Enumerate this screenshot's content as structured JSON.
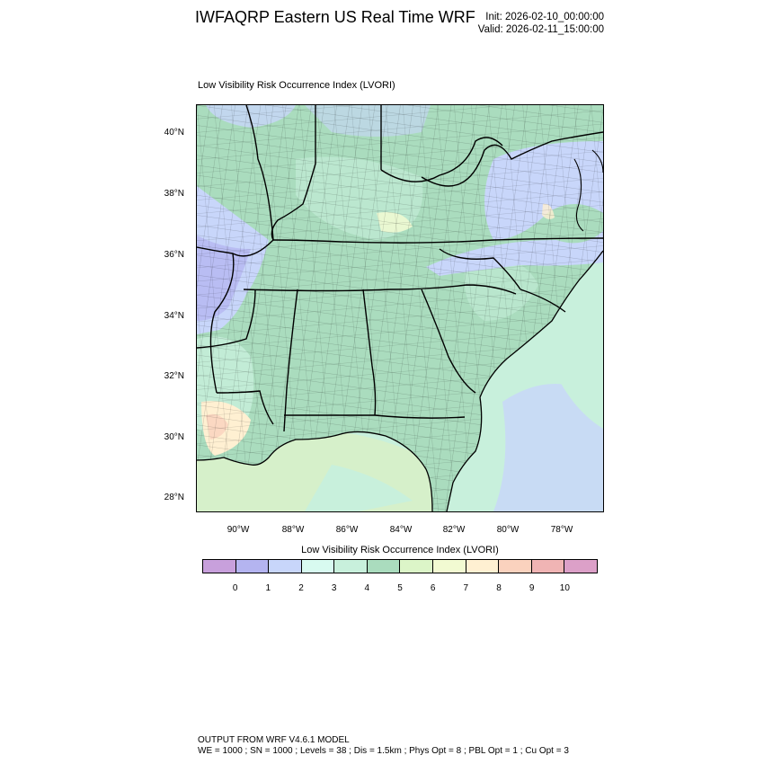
{
  "header": {
    "title": "IWFAQRP Eastern US Real Time WRF",
    "init": "Init: 2026-02-10_00:00:00",
    "valid": "Valid: 2026-02-11_15:00:00"
  },
  "map": {
    "title": "Low Visibility Risk Occurrence Index   (LVORI)",
    "lat_labels": [
      "40°N",
      "38°N",
      "36°N",
      "34°N",
      "32°N",
      "30°N",
      "28°N"
    ],
    "lon_labels": [
      "90°W",
      "88°W",
      "86°W",
      "84°W",
      "82°W",
      "80°W",
      "78°W"
    ]
  },
  "colorbar": {
    "title": "Low Visibility Risk Occurrence Index  (LVORI)",
    "labels": [
      "0",
      "1",
      "2",
      "3",
      "4",
      "5",
      "6",
      "7",
      "8",
      "9",
      "10"
    ],
    "colors": [
      "#c8a0dc",
      "#b4b4f0",
      "#c8d6fa",
      "#d8faf0",
      "#c8f0dc",
      "#aadcbe",
      "#dcf5c8",
      "#f2fad2",
      "#fff0d2",
      "#fad2be",
      "#f0b4b4",
      "#dca0c8"
    ]
  },
  "footer": {
    "line1": "OUTPUT FROM WRF V4.6.1 MODEL",
    "line2": "WE = 1000 ; SN = 1000 ; Levels = 38 ; Dis = 1.5km ; Phys Opt = 8 ; PBL Opt = 1 ; Cu Opt = 3"
  }
}
